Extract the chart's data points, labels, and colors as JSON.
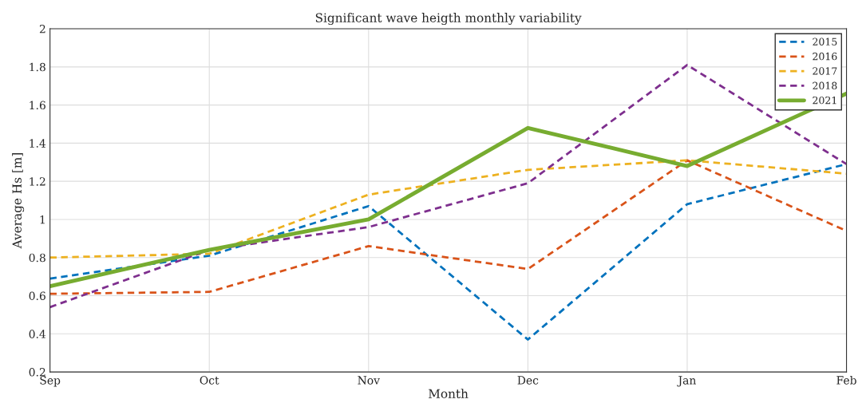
{
  "chart_data": {
    "type": "line",
    "title": "Significant wave heigth monthly variability",
    "xlabel": "Month",
    "ylabel": "Average Hs [m]",
    "categories": [
      "Sep",
      "Oct",
      "Nov",
      "Dec",
      "Jan",
      "Feb"
    ],
    "series": [
      {
        "name": "2015",
        "color": "#0072bd",
        "line_style": "dashed",
        "values": [
          0.69,
          0.81,
          1.07,
          0.37,
          1.08,
          1.29
        ]
      },
      {
        "name": "2016",
        "color": "#d95319",
        "line_style": "dashed",
        "values": [
          0.61,
          0.62,
          0.86,
          0.74,
          1.31,
          0.94
        ]
      },
      {
        "name": "2017",
        "color": "#edb120",
        "line_style": "dashed",
        "values": [
          0.8,
          0.82,
          1.13,
          1.26,
          1.31,
          1.24
        ]
      },
      {
        "name": "2018",
        "color": "#7e2f8e",
        "line_style": "dashed",
        "values": [
          0.54,
          0.84,
          0.96,
          1.19,
          1.81,
          1.29
        ]
      },
      {
        "name": "2021",
        "color": "#77ac30",
        "line_style": "solid",
        "values": [
          0.65,
          0.84,
          1.0,
          1.48,
          1.28,
          1.66
        ]
      }
    ],
    "ylim": [
      0.2,
      2
    ],
    "yticks": [
      0.2,
      0.4,
      0.6,
      0.8,
      1,
      1.2,
      1.4,
      1.6,
      1.8,
      2
    ],
    "grid": true,
    "legend": "top right",
    "marker": "none"
  }
}
